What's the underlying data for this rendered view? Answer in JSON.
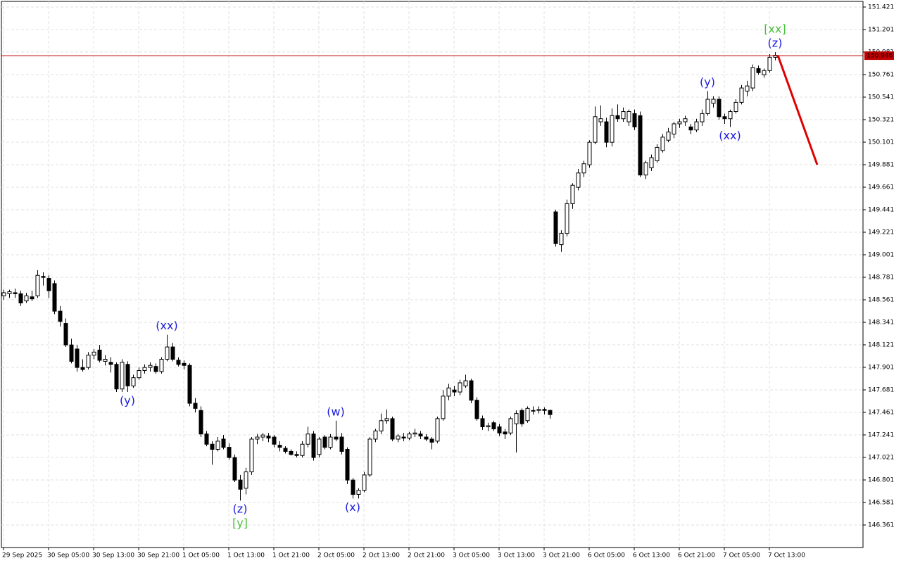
{
  "chart_data": {
    "type": "candlestick",
    "categories": [
      "29 Sep 2025",
      null,
      null,
      null,
      null,
      null,
      null,
      null,
      "30 Sep 05:00",
      null,
      null,
      null,
      null,
      null,
      null,
      null,
      "30 Sep 13:00",
      null,
      null,
      null,
      null,
      null,
      null,
      null,
      "30 Sep 21:00",
      null,
      null,
      null,
      null,
      null,
      null,
      null,
      "1 Oct 05:00",
      null,
      null,
      null,
      null,
      null,
      null,
      null,
      "1 Oct 13:00",
      null,
      null,
      null,
      null,
      null,
      null,
      null,
      "1 Oct 21:00",
      null,
      null,
      null,
      null,
      null,
      null,
      null,
      "2 Oct 05:00",
      null,
      null,
      null,
      null,
      null,
      null,
      null,
      "2 Oct 13:00",
      null,
      null,
      null,
      null,
      null,
      null,
      null,
      "2 Oct 21:00",
      null,
      null,
      null,
      null,
      null,
      null,
      null,
      "3 Oct 05:00",
      null,
      null,
      null,
      null,
      null,
      null,
      null,
      "3 Oct 13:00",
      null,
      null,
      null,
      null,
      null,
      null,
      null,
      "3 Oct 21:00",
      null,
      null,
      null,
      null,
      null,
      null,
      null,
      "6 Oct 05:00",
      null,
      null,
      null,
      null,
      null,
      null,
      null,
      "6 Oct 13:00",
      null,
      null,
      null,
      null,
      null,
      null,
      null,
      "6 Oct 21:00",
      null,
      null,
      null,
      null,
      null,
      null,
      null,
      "7 Oct 05:00",
      null,
      null,
      null,
      null,
      null,
      null,
      null,
      "7 Oct 13:00",
      null
    ],
    "ohlc": [
      [
        148.6,
        148.66,
        148.56,
        148.63
      ],
      [
        148.62,
        148.66,
        148.58,
        148.64
      ],
      [
        148.63,
        148.67,
        148.58,
        148.62
      ],
      [
        148.62,
        148.65,
        148.5,
        148.53
      ],
      [
        148.55,
        148.63,
        148.53,
        148.6
      ],
      [
        148.59,
        148.65,
        148.55,
        148.57
      ],
      [
        148.6,
        148.85,
        148.58,
        148.8
      ],
      [
        148.79,
        148.83,
        148.7,
        148.78
      ],
      [
        148.77,
        148.8,
        148.58,
        148.65
      ],
      [
        148.72,
        148.75,
        148.42,
        148.45
      ],
      [
        148.45,
        148.5,
        148.3,
        148.35
      ],
      [
        148.33,
        148.38,
        148.1,
        148.12
      ],
      [
        148.12,
        148.18,
        147.94,
        147.96
      ],
      [
        148.08,
        148.12,
        147.86,
        147.9
      ],
      [
        147.9,
        147.98,
        147.86,
        147.88
      ],
      [
        147.9,
        148.05,
        147.88,
        148.02
      ],
      [
        148.02,
        148.08,
        147.98,
        148.05
      ],
      [
        148.07,
        148.12,
        147.95,
        147.97
      ],
      [
        147.96,
        148.02,
        147.92,
        147.98
      ],
      [
        147.95,
        148.0,
        147.85,
        147.93
      ],
      [
        147.93,
        147.95,
        147.66,
        147.69
      ],
      [
        147.69,
        147.98,
        147.66,
        147.95
      ],
      [
        147.93,
        147.96,
        147.66,
        147.72
      ],
      [
        147.72,
        147.83,
        147.7,
        147.8
      ],
      [
        147.8,
        147.9,
        147.78,
        147.87
      ],
      [
        147.87,
        147.93,
        147.84,
        147.9
      ],
      [
        147.9,
        147.95,
        147.86,
        147.92
      ],
      [
        147.91,
        147.94,
        147.84,
        147.86
      ],
      [
        147.86,
        148.0,
        147.84,
        147.98
      ],
      [
        147.98,
        148.22,
        147.96,
        148.1
      ],
      [
        148.1,
        148.14,
        147.96,
        147.98
      ],
      [
        147.97,
        148.0,
        147.91,
        147.93
      ],
      [
        147.94,
        147.97,
        147.88,
        147.92
      ],
      [
        147.92,
        147.94,
        147.52,
        147.55
      ],
      [
        147.55,
        147.6,
        147.46,
        147.5
      ],
      [
        147.48,
        147.52,
        147.22,
        147.25
      ],
      [
        147.25,
        147.28,
        147.13,
        147.15
      ],
      [
        147.15,
        147.18,
        146.95,
        147.1
      ],
      [
        147.1,
        147.22,
        147.08,
        147.18
      ],
      [
        147.2,
        147.24,
        147.1,
        147.12
      ],
      [
        147.12,
        147.16,
        147.0,
        147.02
      ],
      [
        147.02,
        147.05,
        146.78,
        146.8
      ],
      [
        146.8,
        146.85,
        146.6,
        146.71
      ],
      [
        146.72,
        146.92,
        146.66,
        146.88
      ],
      [
        146.88,
        147.22,
        146.85,
        147.2
      ],
      [
        147.2,
        147.25,
        147.15,
        147.22
      ],
      [
        147.22,
        147.26,
        147.18,
        147.24
      ],
      [
        147.23,
        147.26,
        147.17,
        147.21
      ],
      [
        147.22,
        147.24,
        147.12,
        147.15
      ],
      [
        147.14,
        147.18,
        147.08,
        147.12
      ],
      [
        147.11,
        147.13,
        147.06,
        147.08
      ],
      [
        147.08,
        147.1,
        147.04,
        147.05
      ],
      [
        147.05,
        147.08,
        147.02,
        147.04
      ],
      [
        147.04,
        147.18,
        147.02,
        147.15
      ],
      [
        147.15,
        147.32,
        147.12,
        147.25
      ],
      [
        147.25,
        147.28,
        146.99,
        147.02
      ],
      [
        147.05,
        147.22,
        147.02,
        147.2
      ],
      [
        147.22,
        147.24,
        147.1,
        147.12
      ],
      [
        147.12,
        147.25,
        147.1,
        147.22
      ],
      [
        147.22,
        147.38,
        147.18,
        147.2
      ],
      [
        147.22,
        147.26,
        147.05,
        147.08
      ],
      [
        147.1,
        147.12,
        146.76,
        146.8
      ],
      [
        146.8,
        146.82,
        146.62,
        146.66
      ],
      [
        146.66,
        146.72,
        146.62,
        146.7
      ],
      [
        146.7,
        146.88,
        146.68,
        146.85
      ],
      [
        146.85,
        147.22,
        146.83,
        147.2
      ],
      [
        147.2,
        147.3,
        147.17,
        147.28
      ],
      [
        147.28,
        147.45,
        147.25,
        147.38
      ],
      [
        147.38,
        147.49,
        147.35,
        147.4
      ],
      [
        147.4,
        147.42,
        147.18,
        147.2
      ],
      [
        147.2,
        147.25,
        147.17,
        147.23
      ],
      [
        147.22,
        147.26,
        147.18,
        147.21
      ],
      [
        147.21,
        147.27,
        147.19,
        147.25
      ],
      [
        147.25,
        147.3,
        147.22,
        147.26
      ],
      [
        147.25,
        147.28,
        147.2,
        147.23
      ],
      [
        147.22,
        147.25,
        147.18,
        147.2
      ],
      [
        147.2,
        147.22,
        147.1,
        147.17
      ],
      [
        147.18,
        147.42,
        147.16,
        147.4
      ],
      [
        147.4,
        147.68,
        147.38,
        147.62
      ],
      [
        147.62,
        147.74,
        147.58,
        147.7
      ],
      [
        147.68,
        147.72,
        147.62,
        147.66
      ],
      [
        147.66,
        147.78,
        147.63,
        147.75
      ],
      [
        147.72,
        147.83,
        147.7,
        147.77
      ],
      [
        147.77,
        147.79,
        147.55,
        147.58
      ],
      [
        147.58,
        147.61,
        147.38,
        147.4
      ],
      [
        147.4,
        147.43,
        147.29,
        147.32
      ],
      [
        147.32,
        147.36,
        147.28,
        147.33
      ],
      [
        147.36,
        147.38,
        147.28,
        147.3
      ],
      [
        147.32,
        147.35,
        147.23,
        147.26
      ],
      [
        147.27,
        147.3,
        147.2,
        147.25
      ],
      [
        147.26,
        147.42,
        147.24,
        147.4
      ],
      [
        147.35,
        147.48,
        147.07,
        147.45
      ],
      [
        147.48,
        147.5,
        147.32,
        147.35
      ],
      [
        147.38,
        147.52,
        147.36,
        147.5
      ],
      [
        147.48,
        147.52,
        147.44,
        147.48
      ],
      [
        147.48,
        147.52,
        147.45,
        147.49
      ],
      [
        147.49,
        147.51,
        147.44,
        147.48
      ],
      [
        147.48,
        147.49,
        147.4,
        147.44
      ],
      [
        149.42,
        149.44,
        149.08,
        149.11
      ],
      [
        149.1,
        149.24,
        149.03,
        149.21
      ],
      [
        149.21,
        149.54,
        149.18,
        149.5
      ],
      [
        149.5,
        149.7,
        149.45,
        149.68
      ],
      [
        149.66,
        149.84,
        149.63,
        149.8
      ],
      [
        149.8,
        149.92,
        149.76,
        149.89
      ],
      [
        149.88,
        150.12,
        149.85,
        150.1
      ],
      [
        150.1,
        150.45,
        150.08,
        150.35
      ],
      [
        150.3,
        150.46,
        150.26,
        150.33
      ],
      [
        150.3,
        150.34,
        150.05,
        150.1
      ],
      [
        150.1,
        150.43,
        150.06,
        150.36
      ],
      [
        150.36,
        150.47,
        150.3,
        150.33
      ],
      [
        150.33,
        150.44,
        150.3,
        150.4
      ],
      [
        150.3,
        150.42,
        150.26,
        150.4
      ],
      [
        150.38,
        150.42,
        150.22,
        150.25
      ],
      [
        150.36,
        150.4,
        149.76,
        149.78
      ],
      [
        149.78,
        149.92,
        149.74,
        149.9
      ],
      [
        149.85,
        149.98,
        149.82,
        149.95
      ],
      [
        149.92,
        150.08,
        149.9,
        150.05
      ],
      [
        150.02,
        150.18,
        150.0,
        150.15
      ],
      [
        150.12,
        150.24,
        150.1,
        150.2
      ],
      [
        150.18,
        150.3,
        150.14,
        150.28
      ],
      [
        150.28,
        150.33,
        150.24,
        150.3
      ],
      [
        150.3,
        150.36,
        150.26,
        150.33
      ],
      [
        150.25,
        150.28,
        150.18,
        150.22
      ],
      [
        150.22,
        150.33,
        150.2,
        150.3
      ],
      [
        150.3,
        150.42,
        150.26,
        150.38
      ],
      [
        150.38,
        150.6,
        150.36,
        150.52
      ],
      [
        150.48,
        150.55,
        150.44,
        150.52
      ],
      [
        150.52,
        150.55,
        150.32,
        150.35
      ],
      [
        150.35,
        150.38,
        150.28,
        150.33
      ],
      [
        150.33,
        150.42,
        150.25,
        150.4
      ],
      [
        150.4,
        150.52,
        150.38,
        150.49
      ],
      [
        150.49,
        150.66,
        150.47,
        150.63
      ],
      [
        150.6,
        150.7,
        150.55,
        150.65
      ],
      [
        150.63,
        150.86,
        150.6,
        150.83
      ],
      [
        150.82,
        150.85,
        150.76,
        150.78
      ],
      [
        150.76,
        150.82,
        150.73,
        150.8
      ],
      [
        150.8,
        150.96,
        150.78,
        150.93
      ],
      [
        150.93,
        150.98,
        150.9,
        150.95
      ]
    ],
    "up_color": "#ffffff",
    "down_color": "#000000",
    "ylim": [
      146.141,
      151.476
    ],
    "yticks": [
      151.421,
      151.201,
      150.981,
      150.761,
      150.541,
      150.321,
      150.101,
      149.881,
      149.661,
      149.441,
      149.221,
      149.001,
      148.781,
      148.561,
      148.341,
      148.121,
      147.901,
      147.681,
      147.461,
      147.241,
      147.021,
      146.801,
      146.581,
      146.361
    ],
    "grid": true,
    "bid": {
      "value": 150.946,
      "color": "#c00000"
    },
    "forecast": {
      "values": [
        150.95,
        149.88
      ],
      "color": "#e00000"
    },
    "annotations": [
      {
        "text": "(xx)",
        "color": "#1a1ae0"
      },
      {
        "text": "(y)",
        "color": "#1a1ae0"
      },
      {
        "text": "(z)",
        "color": "#1a1ae0"
      },
      {
        "text": "[y]",
        "color": "#4cc13c"
      },
      {
        "text": "(w)",
        "color": "#1a1ae0"
      },
      {
        "text": "(x)",
        "color": "#1a1ae0"
      },
      {
        "text": "(y)",
        "color": "#1a1ae0"
      },
      {
        "text": "(xx)",
        "color": "#1a1ae0"
      },
      {
        "text": "(z)",
        "color": "#1a1ae0"
      },
      {
        "text": "[xx]",
        "color": "#4cc13c"
      }
    ]
  }
}
